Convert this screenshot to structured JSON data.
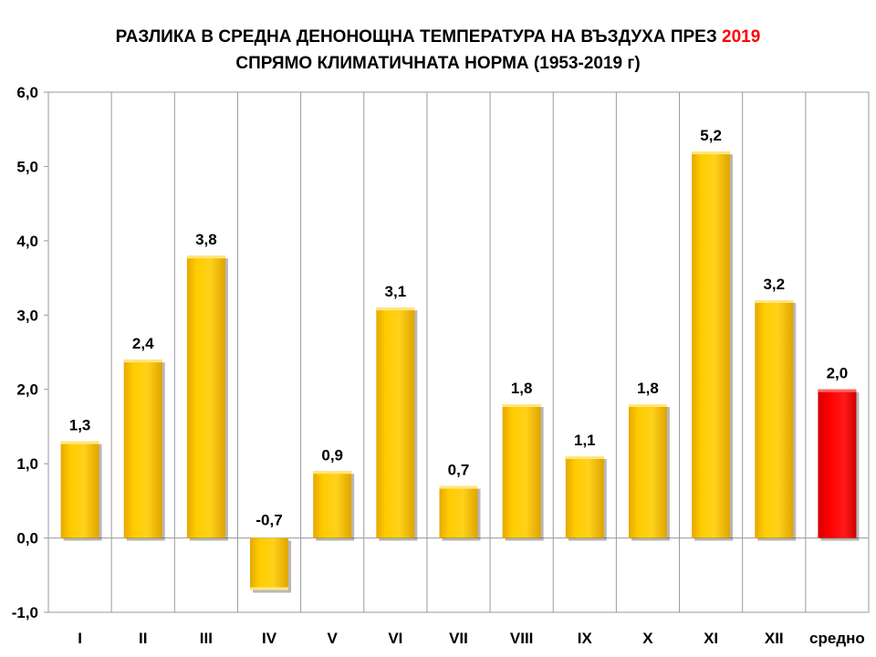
{
  "chart_data": {
    "type": "bar",
    "title_line1_prefix": "РАЗЛИКА В СРЕДНА ДЕНОНОЩНА ТЕМПЕРАТУРА НА ВЪЗДУХА ПРЕЗ",
    "title_line1_year": "2019",
    "title_line2": "СПРЯМО КЛИМАТИЧНАТА НОРМА (1953-2019 г)",
    "categories": [
      "I",
      "II",
      "III",
      "IV",
      "V",
      "VI",
      "VII",
      "VIII",
      "IX",
      "X",
      "XI",
      "XII",
      "средно"
    ],
    "values": [
      1.3,
      2.4,
      3.8,
      -0.7,
      0.9,
      3.1,
      0.7,
      1.8,
      1.1,
      1.8,
      5.2,
      3.2,
      2.0
    ],
    "value_labels": [
      "1,3",
      "2,4",
      "3,8",
      "-0,7",
      "0,9",
      "3,1",
      "0,7",
      "1,8",
      "1,1",
      "1,8",
      "5,2",
      "3,2",
      "2,0"
    ],
    "bar_colors": [
      "#ffcc00",
      "#ffcc00",
      "#ffcc00",
      "#ffcc00",
      "#ffcc00",
      "#ffcc00",
      "#ffcc00",
      "#ffcc00",
      "#ffcc00",
      "#ffcc00",
      "#ffcc00",
      "#ffcc00",
      "#ff0000"
    ],
    "ylim": [
      -1.0,
      6.0
    ],
    "y_ticks": [
      -1.0,
      0.0,
      1.0,
      2.0,
      3.0,
      4.0,
      5.0,
      6.0
    ],
    "y_tick_labels": [
      "-1,0",
      "0,0",
      "1,0",
      "2,0",
      "3,0",
      "4,0",
      "5,0",
      "6,0"
    ],
    "grid": "vertical",
    "legend": "none"
  }
}
